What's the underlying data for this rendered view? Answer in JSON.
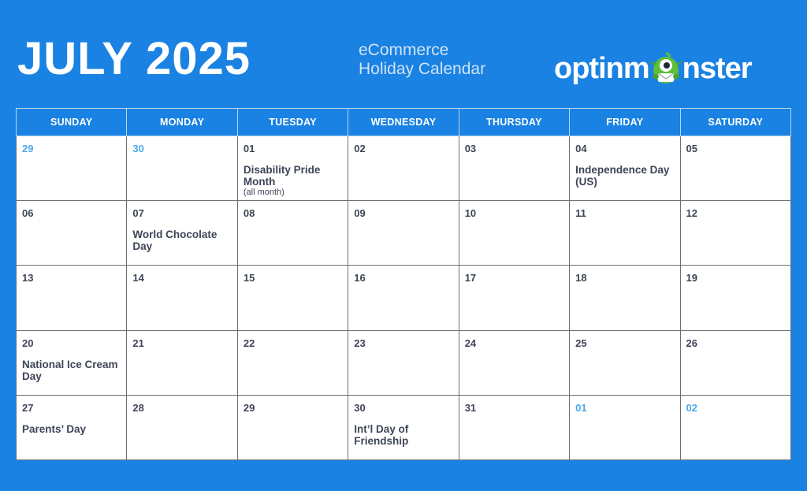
{
  "header": {
    "title": "JULY 2025",
    "subtitle_line1": "eCommerce",
    "subtitle_line2": "Holiday Calendar",
    "logo_left": "optinm",
    "logo_right": "nster",
    "logo_mascot_icon": "green-monster-mascot"
  },
  "colors": {
    "background": "#1a82e2",
    "text_dark": "#3d4556",
    "other_month_day": "#4aa8e8"
  },
  "weekdays": [
    "SUNDAY",
    "MONDAY",
    "TUESDAY",
    "WEDNESDAY",
    "THURSDAY",
    "FRIDAY",
    "SATURDAY"
  ],
  "weeks": [
    [
      {
        "day": "29",
        "other": true
      },
      {
        "day": "30",
        "other": true
      },
      {
        "day": "01",
        "event": "Disability Pride Month",
        "note": "(all month)"
      },
      {
        "day": "02"
      },
      {
        "day": "03"
      },
      {
        "day": "04",
        "event": "Independence Day (US)"
      },
      {
        "day": "05"
      }
    ],
    [
      {
        "day": "06"
      },
      {
        "day": "07",
        "event": "World Chocolate Day"
      },
      {
        "day": "08"
      },
      {
        "day": "09"
      },
      {
        "day": "10"
      },
      {
        "day": "11"
      },
      {
        "day": "12"
      }
    ],
    [
      {
        "day": "13"
      },
      {
        "day": "14"
      },
      {
        "day": "15"
      },
      {
        "day": "16"
      },
      {
        "day": "17"
      },
      {
        "day": "18"
      },
      {
        "day": "19"
      }
    ],
    [
      {
        "day": "20",
        "event": "National Ice Cream Day"
      },
      {
        "day": "21"
      },
      {
        "day": "22"
      },
      {
        "day": "23"
      },
      {
        "day": "24"
      },
      {
        "day": "25"
      },
      {
        "day": "26"
      }
    ],
    [
      {
        "day": "27",
        "event": "Parents’ Day"
      },
      {
        "day": "28"
      },
      {
        "day": "29"
      },
      {
        "day": "30",
        "event": "Int’l Day of Friendship"
      },
      {
        "day": "31"
      },
      {
        "day": "01",
        "other": true
      },
      {
        "day": "02",
        "other": true
      }
    ]
  ]
}
